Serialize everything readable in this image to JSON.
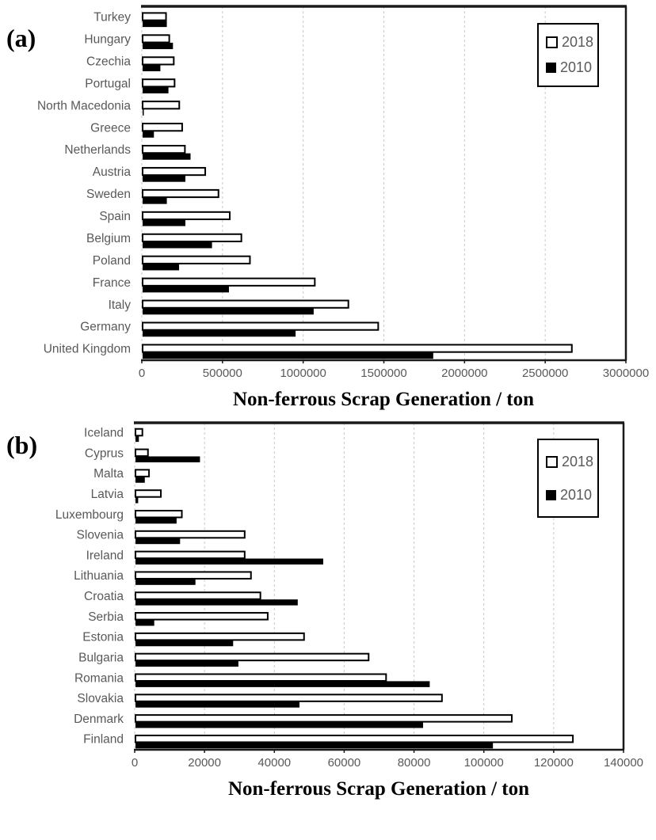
{
  "figure": {
    "panels": [
      {
        "panel_label": "(a)",
        "axis_title": "Non-ferrous Scrap Generation / ton",
        "legend": [
          {
            "label": "2018",
            "swatch": "white-square"
          },
          {
            "label": "2010",
            "swatch": "black-square"
          }
        ]
      },
      {
        "panel_label": "(b)",
        "axis_title": "Non-ferrous Scrap Generation / ton",
        "legend": [
          {
            "label": "2018",
            "swatch": "white-square"
          },
          {
            "label": "2010",
            "swatch": "black-square"
          }
        ]
      }
    ]
  },
  "chart_data": [
    {
      "type": "bar",
      "orientation": "horizontal",
      "xlabel": "Non-ferrous Scrap Generation / ton",
      "legend_position": "top-right",
      "grid": "vertical-dashed",
      "xlim": [
        0,
        3000000
      ],
      "xticks": [
        0,
        500000,
        1000000,
        1500000,
        2000000,
        2500000,
        3000000
      ],
      "xtick_labels": [
        "0",
        "500000",
        "1000000",
        "1500000",
        "2000000",
        "2500000",
        "3000000"
      ],
      "categories_top_to_bottom": [
        "Turkey",
        "Hungary",
        "Czechia",
        "Portugal",
        "North Macedonia",
        "Greece",
        "Netherlands",
        "Austria",
        "Sweden",
        "Spain",
        "Belgium",
        "Poland",
        "France",
        "Italy",
        "Germany",
        "United Kingdom"
      ],
      "series": [
        {
          "name": "2018",
          "fill": "white",
          "values": [
            150000,
            170000,
            198000,
            203000,
            232000,
            250000,
            267000,
            393000,
            475000,
            545000,
            617000,
            670000,
            1072000,
            1280000,
            1465000,
            2665000
          ]
        },
        {
          "name": "2010",
          "fill": "black",
          "values": [
            155000,
            193000,
            115000,
            165000,
            5000,
            75000,
            302000,
            270000,
            155000,
            270000,
            435000,
            231000,
            540000,
            1065000,
            953000,
            1806000
          ]
        }
      ]
    },
    {
      "type": "bar",
      "orientation": "horizontal",
      "xlabel": "Non-ferrous Scrap Generation / ton",
      "legend_position": "top-right",
      "grid": "vertical-dashed",
      "xlim": [
        0,
        140000
      ],
      "xticks": [
        0,
        20000,
        40000,
        60000,
        80000,
        100000,
        120000,
        140000
      ],
      "xtick_labels": [
        "0",
        "20000",
        "40000",
        "60000",
        "80000",
        "100000",
        "120000",
        "140000"
      ],
      "categories_top_to_bottom": [
        "Iceland",
        "Cyprus",
        "Malta",
        "Latvia",
        "Luxembourg",
        "Slovenia",
        "Ireland",
        "Lithuania",
        "Croatia",
        "Serbia",
        "Estonia",
        "Bulgaria",
        "Romania",
        "Slovakia",
        "Denmark",
        "Finland"
      ],
      "series": [
        {
          "name": "2018",
          "fill": "white",
          "values": [
            2200,
            3800,
            4100,
            7500,
            13500,
            31500,
            31500,
            33300,
            36000,
            38100,
            48500,
            67000,
            72000,
            88000,
            108000,
            125500
          ]
        },
        {
          "name": "2010",
          "fill": "black",
          "values": [
            1200,
            18700,
            2900,
            1000,
            12000,
            13000,
            54000,
            17400,
            46700,
            5600,
            28200,
            29700,
            84500,
            47200,
            82600,
            102600
          ]
        }
      ]
    }
  ],
  "colors": {
    "axis_frame": "#1a1a1a",
    "gridline": "#c9c9c9",
    "tick_label": "#595959",
    "category_label": "#595959",
    "legend_text": "#595959",
    "bar_2018_fill": "#ffffff",
    "bar_2018_stroke": "#000000",
    "bar_2010_fill": "#000000"
  }
}
